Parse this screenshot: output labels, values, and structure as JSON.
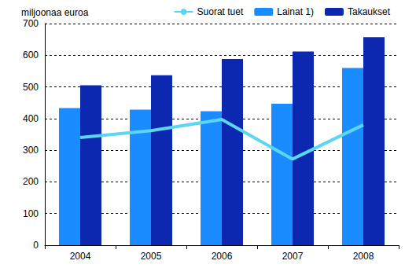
{
  "chart_data": {
    "type": "bar",
    "y_label": "miljoonaa euroa",
    "categories": [
      "2004",
      "2005",
      "2006",
      "2007",
      "2008"
    ],
    "series": [
      {
        "name": "Suorat tuet",
        "type": "line",
        "color": "#5cd6f2",
        "values": [
          340,
          362,
          397,
          272,
          380
        ]
      },
      {
        "name": "Lainat 1)",
        "type": "bar",
        "color": "#1a8cff",
        "values": [
          433,
          428,
          423,
          447,
          560
        ]
      },
      {
        "name": "Takaukset",
        "type": "bar",
        "color": "#0c28b0",
        "values": [
          505,
          537,
          588,
          612,
          657
        ]
      }
    ],
    "ylim": [
      0,
      700
    ],
    "yticks": [
      0,
      100,
      200,
      300,
      400,
      500,
      600,
      700
    ],
    "grid": true,
    "legend": "top"
  }
}
